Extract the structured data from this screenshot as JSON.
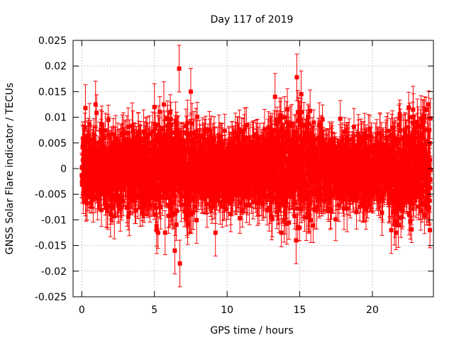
{
  "chart_data": {
    "type": "scatter",
    "title": "Day 117 of 2019",
    "xlabel": "GPS time / hours",
    "ylabel": "GNSS Solar Flare indicator / TECUs",
    "xlim": [
      -0.6,
      24.2
    ],
    "ylim": [
      -0.025,
      0.025
    ],
    "x_ticks": [
      0,
      5,
      10,
      15,
      20
    ],
    "x_tick_labels": [
      "0",
      "5",
      "10",
      "15",
      "20"
    ],
    "y_ticks": [
      -0.025,
      -0.02,
      -0.015,
      -0.01,
      -0.005,
      0,
      0.005,
      0.01,
      0.015,
      0.02,
      0.025
    ],
    "y_tick_labels": [
      "-0.025",
      "-0.02",
      "-0.015",
      "-0.01",
      "-0.005",
      "0",
      "0.005",
      "0.01",
      "0.015",
      "0.02",
      "0.025"
    ],
    "grid": true,
    "series": [
      {
        "name": "solar flare indicator",
        "color": "#ff0000",
        "marker": "square",
        "error_bars": true,
        "typical_error": 0.0035,
        "x_range": [
          0,
          24
        ],
        "noise_sd_quiet": 0.0036,
        "noise_sd_active": 0.005,
        "active_periods_hours": [
          [
            5,
            8
          ],
          [
            13,
            16
          ],
          [
            21.5,
            24
          ]
        ],
        "highlighted_points": [
          {
            "x": 6.7,
            "y": 0.0195
          },
          {
            "x": 6.75,
            "y": -0.0185
          },
          {
            "x": 6.4,
            "y": -0.016
          },
          {
            "x": 7.5,
            "y": 0.015
          },
          {
            "x": 14.8,
            "y": 0.0178
          },
          {
            "x": 14.75,
            "y": -0.014
          },
          {
            "x": 13.3,
            "y": 0.014
          },
          {
            "x": 15.1,
            "y": 0.0145
          },
          {
            "x": 21.3,
            "y": -0.012
          },
          {
            "x": 0.25,
            "y": 0.0118
          },
          {
            "x": 0.95,
            "y": 0.0125
          },
          {
            "x": 22.8,
            "y": 0.0115
          },
          {
            "x": 9.2,
            "y": -0.0125
          },
          {
            "x": 5.0,
            "y": 0.012
          }
        ]
      }
    ]
  }
}
